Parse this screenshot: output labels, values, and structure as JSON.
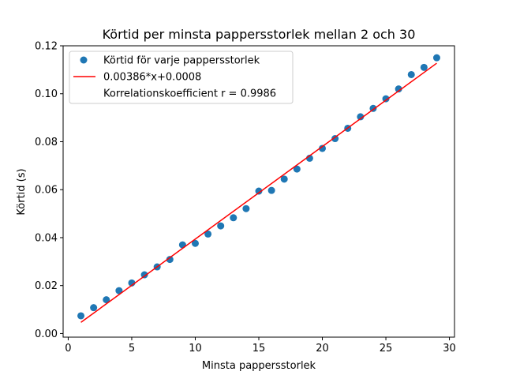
{
  "chart_data": {
    "type": "scatter",
    "title": "Körtid per minsta pappersstorlek mellan 2 och 30",
    "xlabel": "Minsta pappersstorlek",
    "ylabel": "Körtid (s)",
    "xlim": [
      -0.4,
      30.4
    ],
    "ylim": [
      -0.0015,
      0.12
    ],
    "x_ticks": [
      0,
      5,
      10,
      15,
      20,
      25,
      30
    ],
    "x_tick_labels": [
      "0",
      "5",
      "10",
      "15",
      "20",
      "25",
      "30"
    ],
    "y_ticks": [
      0.0,
      0.02,
      0.04,
      0.06,
      0.08,
      0.1,
      0.12
    ],
    "y_tick_labels": [
      "0.00",
      "0.02",
      "0.04",
      "0.06",
      "0.08",
      "0.10",
      "0.12"
    ],
    "grid": false,
    "legend_position": "top-left",
    "series": [
      {
        "name": "Körtid för varje pappersstorlek",
        "kind": "scatter",
        "color": "#1f77b4",
        "x": [
          1,
          2,
          3,
          4,
          5,
          6,
          7,
          8,
          9,
          10,
          11,
          12,
          13,
          14,
          15,
          16,
          17,
          18,
          19,
          20,
          21,
          22,
          23,
          24,
          25,
          26,
          27,
          28,
          29
        ],
        "y": [
          0.0074,
          0.0108,
          0.0141,
          0.0179,
          0.0211,
          0.0245,
          0.0278,
          0.0309,
          0.037,
          0.0376,
          0.0415,
          0.0449,
          0.0483,
          0.0521,
          0.0594,
          0.0597,
          0.0644,
          0.0686,
          0.0731,
          0.0772,
          0.0813,
          0.0856,
          0.0904,
          0.0939,
          0.0979,
          0.102,
          0.108,
          0.111,
          0.115
        ]
      },
      {
        "name": "0.00386*x+0.0008",
        "kind": "line",
        "color": "#ff0000",
        "x": [
          1,
          29
        ],
        "y": [
          0.00466,
          0.11274
        ]
      }
    ],
    "legend": [
      {
        "label": "Körtid för varje pappersstorlek",
        "marker": "dot",
        "color": "#1f77b4"
      },
      {
        "label": "0.00386*x+0.0008",
        "marker": "line",
        "color": "#ff0000"
      },
      {
        "label": "Korrelationskoefficient r = 0.9986",
        "marker": "none",
        "color": "#ffffff"
      }
    ]
  }
}
